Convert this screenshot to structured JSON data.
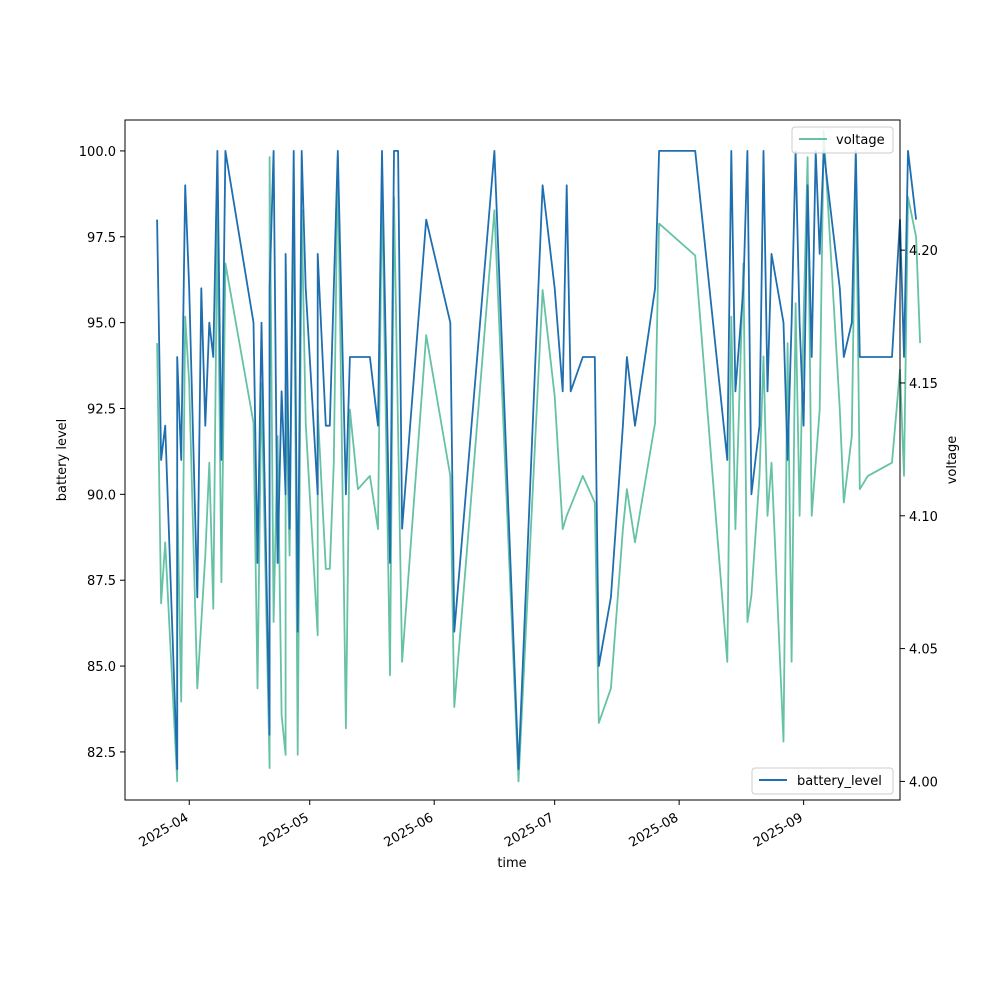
{
  "chart_data": {
    "type": "line",
    "xlabel": "time",
    "ylabel": "battery level",
    "y2label": "voltage",
    "xlim": [
      "2025-03-16",
      "2025-09-25"
    ],
    "ylim": [
      81.1,
      100.9
    ],
    "y2lim": [
      3.993,
      4.249
    ],
    "x_ticks": [
      "2025-04-01",
      "2025-05-01",
      "2025-06-01",
      "2025-07-01",
      "2025-08-01",
      "2025-09-01"
    ],
    "x_tick_labels": [
      "2025-04",
      "2025-05",
      "2025-06",
      "2025-07",
      "2025-08",
      "2025-09"
    ],
    "y_ticks": [
      82.5,
      85.0,
      87.5,
      90.0,
      92.5,
      95.0,
      97.5,
      100.0
    ],
    "y_tick_labels": [
      "82.5",
      "85.0",
      "87.5",
      "90.0",
      "92.5",
      "95.0",
      "97.5",
      "100.0"
    ],
    "y2_ticks": [
      4.0,
      4.05,
      4.1,
      4.15,
      4.2
    ],
    "y2_tick_labels": [
      "4.00",
      "4.05",
      "4.10",
      "4.15",
      "4.20"
    ],
    "grid": false,
    "legend_battery_position": "lower-right",
    "legend_voltage_position": "upper-right",
    "series": [
      {
        "name": "battery_level",
        "axis": "left",
        "color": "#1f6fb0",
        "points": [
          [
            "2025-03-24",
            98
          ],
          [
            "2025-03-25",
            91
          ],
          [
            "2025-03-26",
            92
          ],
          [
            "2025-03-29",
            82
          ],
          [
            "2025-03-29",
            94
          ],
          [
            "2025-03-30",
            91
          ],
          [
            "2025-03-31",
            99
          ],
          [
            "2025-04-01",
            96
          ],
          [
            "2025-04-03",
            87
          ],
          [
            "2025-04-04",
            96
          ],
          [
            "2025-04-05",
            92
          ],
          [
            "2025-04-06",
            95
          ],
          [
            "2025-04-07",
            94
          ],
          [
            "2025-04-08",
            100
          ],
          [
            "2025-04-09",
            91
          ],
          [
            "2025-04-10",
            100
          ],
          [
            "2025-04-17",
            95
          ],
          [
            "2025-04-18",
            88
          ],
          [
            "2025-04-19",
            95
          ],
          [
            "2025-04-21",
            83
          ],
          [
            "2025-04-21",
            96
          ],
          [
            "2025-04-22",
            100
          ],
          [
            "2025-04-23",
            88
          ],
          [
            "2025-04-24",
            93
          ],
          [
            "2025-04-25",
            90
          ],
          [
            "2025-04-25",
            97
          ],
          [
            "2025-04-26",
            89
          ],
          [
            "2025-04-27",
            100
          ],
          [
            "2025-04-28",
            86
          ],
          [
            "2025-04-29",
            100
          ],
          [
            "2025-04-30",
            96
          ],
          [
            "2025-05-03",
            90
          ],
          [
            "2025-05-03",
            97
          ],
          [
            "2025-05-05",
            92
          ],
          [
            "2025-05-06",
            92
          ],
          [
            "2025-05-07",
            96
          ],
          [
            "2025-05-08",
            100
          ],
          [
            "2025-05-10",
            90
          ],
          [
            "2025-05-11",
            94
          ],
          [
            "2025-05-13",
            94
          ],
          [
            "2025-05-16",
            94
          ],
          [
            "2025-05-18",
            92
          ],
          [
            "2025-05-19",
            100
          ],
          [
            "2025-05-21",
            88
          ],
          [
            "2025-05-22",
            100
          ],
          [
            "2025-05-23",
            100
          ],
          [
            "2025-05-24",
            89
          ],
          [
            "2025-05-30",
            98
          ],
          [
            "2025-06-05",
            95
          ],
          [
            "2025-06-06",
            86
          ],
          [
            "2025-06-16",
            100
          ],
          [
            "2025-06-22",
            82
          ],
          [
            "2025-06-28",
            99
          ],
          [
            "2025-07-01",
            96
          ],
          [
            "2025-07-03",
            93
          ],
          [
            "2025-07-04",
            99
          ],
          [
            "2025-07-05",
            93
          ],
          [
            "2025-07-08",
            94
          ],
          [
            "2025-07-11",
            94
          ],
          [
            "2025-07-12",
            85
          ],
          [
            "2025-07-15",
            87
          ],
          [
            "2025-07-18",
            92
          ],
          [
            "2025-07-19",
            94
          ],
          [
            "2025-07-21",
            92
          ],
          [
            "2025-07-26",
            96
          ],
          [
            "2025-07-27",
            100
          ],
          [
            "2025-08-05",
            100
          ],
          [
            "2025-08-13",
            91
          ],
          [
            "2025-08-14",
            100
          ],
          [
            "2025-08-15",
            93
          ],
          [
            "2025-08-17",
            96
          ],
          [
            "2025-08-18",
            100
          ],
          [
            "2025-08-19",
            90
          ],
          [
            "2025-08-21",
            92
          ],
          [
            "2025-08-22",
            100
          ],
          [
            "2025-08-23",
            93
          ],
          [
            "2025-08-24",
            97
          ],
          [
            "2025-08-27",
            95
          ],
          [
            "2025-08-28",
            91
          ],
          [
            "2025-08-29",
            95
          ],
          [
            "2025-08-30",
            100
          ],
          [
            "2025-08-31",
            95
          ],
          [
            "2025-09-01",
            92
          ],
          [
            "2025-09-02",
            99
          ],
          [
            "2025-09-03",
            94
          ],
          [
            "2025-09-04",
            100
          ],
          [
            "2025-09-05",
            97
          ],
          [
            "2025-09-06",
            100
          ],
          [
            "2025-09-10",
            96
          ],
          [
            "2025-09-11",
            94
          ],
          [
            "2025-09-13",
            95
          ],
          [
            "2025-09-14",
            100
          ],
          [
            "2025-09-15",
            94
          ],
          [
            "2025-09-17",
            94
          ],
          [
            "2025-09-23",
            94
          ],
          [
            "2025-09-25",
            98
          ],
          [
            "2025-09-26",
            94
          ],
          [
            "2025-09-27",
            100
          ],
          [
            "2025-09-29",
            98
          ]
        ]
      },
      {
        "name": "voltage",
        "axis": "right",
        "color": "#66c2a5",
        "points": [
          [
            "2025-03-24",
            4.165
          ],
          [
            "2025-03-25",
            4.067
          ],
          [
            "2025-03-26",
            4.09
          ],
          [
            "2025-03-29",
            4.0
          ],
          [
            "2025-03-29",
            4.11
          ],
          [
            "2025-03-30",
            4.03
          ],
          [
            "2025-03-31",
            4.175
          ],
          [
            "2025-04-01",
            4.15
          ],
          [
            "2025-04-03",
            4.035
          ],
          [
            "2025-04-04",
            4.06
          ],
          [
            "2025-04-05",
            4.085
          ],
          [
            "2025-04-06",
            4.12
          ],
          [
            "2025-04-07",
            4.065
          ],
          [
            "2025-04-08",
            4.215
          ],
          [
            "2025-04-09",
            4.075
          ],
          [
            "2025-04-10",
            4.195
          ],
          [
            "2025-04-17",
            4.135
          ],
          [
            "2025-04-18",
            4.035
          ],
          [
            "2025-04-19",
            4.15
          ],
          [
            "2025-04-21",
            4.005
          ],
          [
            "2025-04-21",
            4.235
          ],
          [
            "2025-04-22",
            4.06
          ],
          [
            "2025-04-23",
            4.13
          ],
          [
            "2025-04-24",
            4.025
          ],
          [
            "2025-04-25",
            4.01
          ],
          [
            "2025-04-25",
            4.15
          ],
          [
            "2025-04-26",
            4.085
          ],
          [
            "2025-04-27",
            4.225
          ],
          [
            "2025-04-28",
            4.01
          ],
          [
            "2025-04-29",
            4.215
          ],
          [
            "2025-04-30",
            4.135
          ],
          [
            "2025-05-03",
            4.055
          ],
          [
            "2025-05-03",
            4.14
          ],
          [
            "2025-05-05",
            4.08
          ],
          [
            "2025-05-06",
            4.08
          ],
          [
            "2025-05-07",
            4.12
          ],
          [
            "2025-05-08",
            4.235
          ],
          [
            "2025-05-10",
            4.02
          ],
          [
            "2025-05-11",
            4.14
          ],
          [
            "2025-05-13",
            4.11
          ],
          [
            "2025-05-16",
            4.115
          ],
          [
            "2025-05-18",
            4.095
          ],
          [
            "2025-05-19",
            4.225
          ],
          [
            "2025-05-21",
            4.04
          ],
          [
            "2025-05-22",
            4.22
          ],
          [
            "2025-05-24",
            4.045
          ],
          [
            "2025-05-30",
            4.168
          ],
          [
            "2025-06-05",
            4.115
          ],
          [
            "2025-06-06",
            4.028
          ],
          [
            "2025-06-16",
            4.215
          ],
          [
            "2025-06-22",
            4.0
          ],
          [
            "2025-06-28",
            4.185
          ],
          [
            "2025-07-01",
            4.145
          ],
          [
            "2025-07-03",
            4.095
          ],
          [
            "2025-07-04",
            4.1
          ],
          [
            "2025-07-08",
            4.115
          ],
          [
            "2025-07-11",
            4.105
          ],
          [
            "2025-07-12",
            4.022
          ],
          [
            "2025-07-15",
            4.035
          ],
          [
            "2025-07-18",
            4.095
          ],
          [
            "2025-07-19",
            4.11
          ],
          [
            "2025-07-21",
            4.09
          ],
          [
            "2025-07-26",
            4.135
          ],
          [
            "2025-07-27",
            4.21
          ],
          [
            "2025-08-05",
            4.198
          ],
          [
            "2025-08-13",
            4.045
          ],
          [
            "2025-08-14",
            4.175
          ],
          [
            "2025-08-15",
            4.095
          ],
          [
            "2025-08-17",
            4.195
          ],
          [
            "2025-08-18",
            4.06
          ],
          [
            "2025-08-19",
            4.07
          ],
          [
            "2025-08-21",
            4.115
          ],
          [
            "2025-08-22",
            4.16
          ],
          [
            "2025-08-23",
            4.1
          ],
          [
            "2025-08-24",
            4.12
          ],
          [
            "2025-08-27",
            4.015
          ],
          [
            "2025-08-28",
            4.165
          ],
          [
            "2025-08-29",
            4.045
          ],
          [
            "2025-08-30",
            4.18
          ],
          [
            "2025-08-31",
            4.1
          ],
          [
            "2025-09-01",
            4.175
          ],
          [
            "2025-09-02",
            4.235
          ],
          [
            "2025-09-03",
            4.1
          ],
          [
            "2025-09-05",
            4.14
          ],
          [
            "2025-09-06",
            4.245
          ],
          [
            "2025-09-10",
            4.14
          ],
          [
            "2025-09-11",
            4.105
          ],
          [
            "2025-09-13",
            4.13
          ],
          [
            "2025-09-14",
            4.235
          ],
          [
            "2025-09-15",
            4.11
          ],
          [
            "2025-09-17",
            4.115
          ],
          [
            "2025-09-23",
            4.12
          ],
          [
            "2025-09-25",
            4.155
          ],
          [
            "2025-09-26",
            4.115
          ],
          [
            "2025-09-27",
            4.22
          ],
          [
            "2025-09-29",
            4.205
          ],
          [
            "2025-09-30",
            4.165
          ]
        ]
      }
    ]
  }
}
